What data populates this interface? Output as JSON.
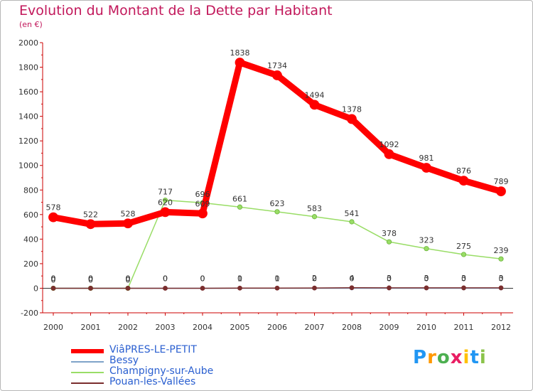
{
  "chart_data": {
    "type": "line",
    "title": "Evolution du Montant de la Dette par Habitant",
    "subtitle": "(en €)",
    "xlabel": "",
    "ylabel": "",
    "ylim": [
      -200,
      2000
    ],
    "yticks": [
      -200,
      0,
      200,
      400,
      600,
      800,
      1000,
      1200,
      1400,
      1600,
      1800,
      2000
    ],
    "categories": [
      "2000",
      "2001",
      "2002",
      "2003",
      "2004",
      "2005",
      "2006",
      "2007",
      "2008",
      "2009",
      "2010",
      "2011",
      "2012"
    ],
    "series": [
      {
        "name": "ViâPRES-LE-PETIT",
        "color": "#ff0000",
        "values": [
          578,
          522,
          528,
          620,
          609,
          1838,
          1734,
          1494,
          1378,
          1092,
          981,
          876,
          789
        ],
        "labels": [
          "578",
          "522",
          "528",
          "620",
          "609",
          "1838",
          "1734",
          "1494",
          "1378",
          "1092",
          "981",
          "876",
          "789"
        ]
      },
      {
        "name": "Bessy",
        "color": "#7fa3c9",
        "values": [
          0,
          0,
          0,
          0,
          0,
          0,
          0,
          0,
          0,
          0,
          0,
          0,
          0
        ],
        "labels": [
          "0",
          "0",
          "0",
          "0",
          "0",
          "0",
          "0",
          "0",
          "0",
          "0",
          "0",
          "0",
          "0"
        ]
      },
      {
        "name": "Champigny-sur-Aube",
        "color": "#99dd66",
        "values": [
          0,
          0,
          0,
          717,
          696,
          661,
          623,
          583,
          541,
          378,
          323,
          275,
          239
        ],
        "labels": [
          "0",
          "0",
          "0",
          "717",
          "696",
          "661",
          "623",
          "583",
          "541",
          "378",
          "323",
          "275",
          "239"
        ]
      },
      {
        "name": "Pouan-les-Vallées",
        "color": "#7a2e2e",
        "values": [
          0,
          0,
          0,
          0,
          0,
          1,
          1,
          2,
          4,
          3,
          3,
          3,
          3
        ],
        "labels": [
          "0",
          "0",
          "0",
          "0",
          "0",
          "1",
          "1",
          "2",
          "4",
          "3",
          "3",
          "3",
          "3"
        ]
      }
    ],
    "grid": false,
    "legend": "bottom-left"
  },
  "colors": {
    "title": "#c2185b",
    "axis": "#cc0000",
    "legend_text": "#2a5fd0"
  },
  "logo": {
    "letters": [
      "P",
      "r",
      "o",
      "x",
      "i",
      "t",
      "i"
    ],
    "colors": [
      "#2196f3",
      "#ff9800",
      "#4caf50",
      "#e91e63",
      "#ffc107",
      "#2196f3",
      "#8bc34a"
    ]
  }
}
